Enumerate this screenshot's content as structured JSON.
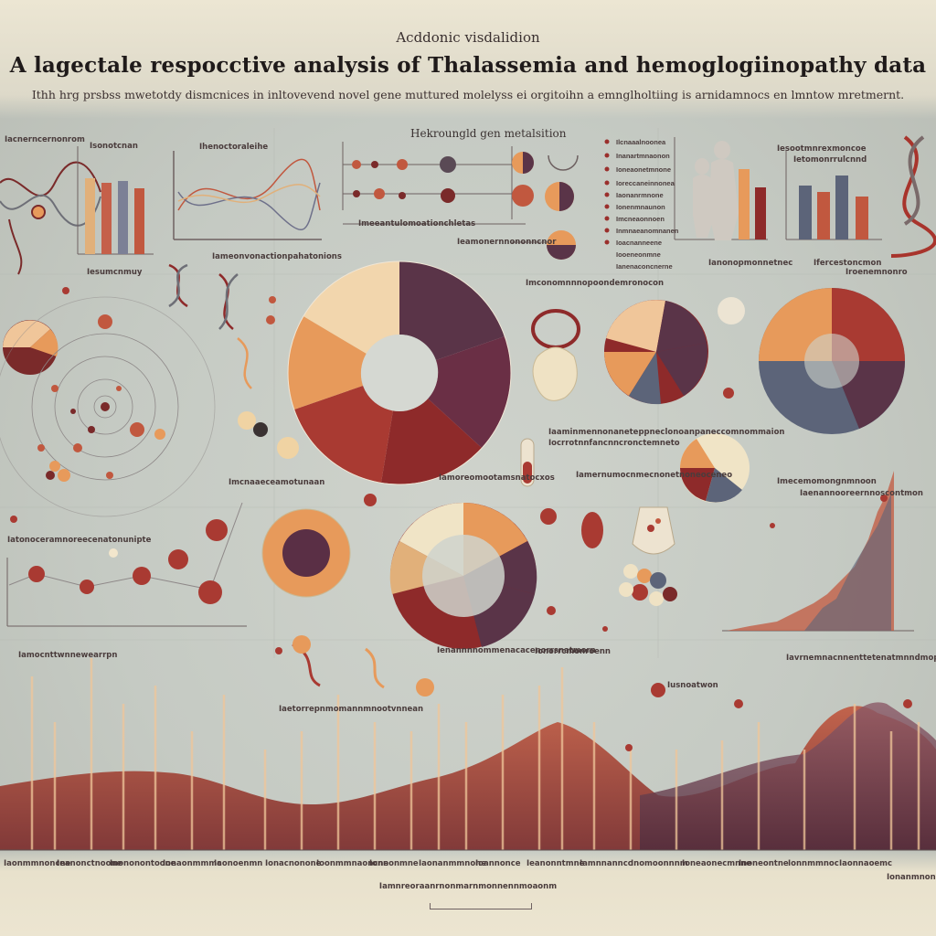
{
  "header": {
    "kicker": "Acddonic visdalidion",
    "title": "A lagectale respocctive analysis of Thalassemia and hemoglogiinopathy data",
    "subtitle": "Ithh hrg prsbss mwetotdy dismcnices in inltovevend novel gene muttured molelyss ei orgitoihn a emnglholtiing is arnidamnocs en lmntow mretmernt."
  },
  "center_label": "Hekroungld gen metalsition",
  "labels": {
    "a1": "Isonotcnan",
    "a2": "Ihenoctoraleihe",
    "a3": "Imeeantulomoationchletas",
    "a4": "Iesootmnrexmoncoe",
    "a5": "Ietomonrrulcnnd",
    "a6": "Iesumcnmuy",
    "a7": "Iameonvonactionpahatonions",
    "a8": "Imconomnnnopoondemronocon",
    "a9": "Ianonopmonnetnec",
    "a10": "Ifercestoncmon",
    "a11": "Iaaminmennonaneteppneclonoanpaneccomnommaion",
    "a12": "Iamernumocnmecnonetnoneoceneo",
    "a13": "Imcnaaeceamotunaan",
    "a14": "Iamoreomootamsnatocxos",
    "a15": "Imecemomongnmnoon",
    "a16": "Iatonoceramnoreecenatonunipte",
    "a17": "Ieamonernnononncnor",
    "a18": "Ienannnnommenacacenorrsnatmorn",
    "a19": "Ionorrcmonroenn",
    "a20": "Iavrnemnacnnenttetenatmnndmopneo",
    "a21": "Iaetorrepnmomannmnootvnnean",
    "a22": "Iamocnttwnnewearrpn",
    "a23": "Iocrrotnnfancnncronctemneto",
    "a24": "Iroenemnonro",
    "a25": "Iacnerncernonrom",
    "a26": "Iaenannooreernnoscontmon",
    "a27": "Iusnoatwon"
  },
  "legend_right": [
    "Ilcnaaalnoonea",
    "Inanartmnaonon",
    "Ioneaonetmnone",
    "Ioreccaneinnonea",
    "Iaonanrmnone",
    "Ionenmnaunon",
    "Imcneaonnoen",
    "Inmnaeanomnanen",
    "Ioacnanneene",
    "Iooeneonmne",
    "Ianenaconcnerne"
  ],
  "bottom_ticks": [
    "Iaonmmnoncne",
    "Ieanonctnoone",
    "Inononontoone",
    "Ionaonmmmc",
    "Iaonoenmn",
    "Ionacnonone",
    "Ioonmmnaoncne",
    "Ionnonmne",
    "Iaonanmmnone",
    "Ioannonce",
    "Ieanonntmne",
    "Iamnnanncc",
    "Inomoonnnm",
    "Ioneaonecmnne",
    "Inoneontne",
    "Ionnmmnoc",
    "Iaonnaoemc",
    "Ionanmnone"
  ],
  "bottom_center": "Iamnreoraanrnonmarnmonnennmoaonm",
  "colors": {
    "deep_red": "#8e2a2a",
    "wine": "#5a3448",
    "slate": "#5c6479",
    "orange": "#e79a5b",
    "peach": "#efc79b",
    "cream": "#f2e6cc",
    "terracotta": "#c1583f"
  }
}
